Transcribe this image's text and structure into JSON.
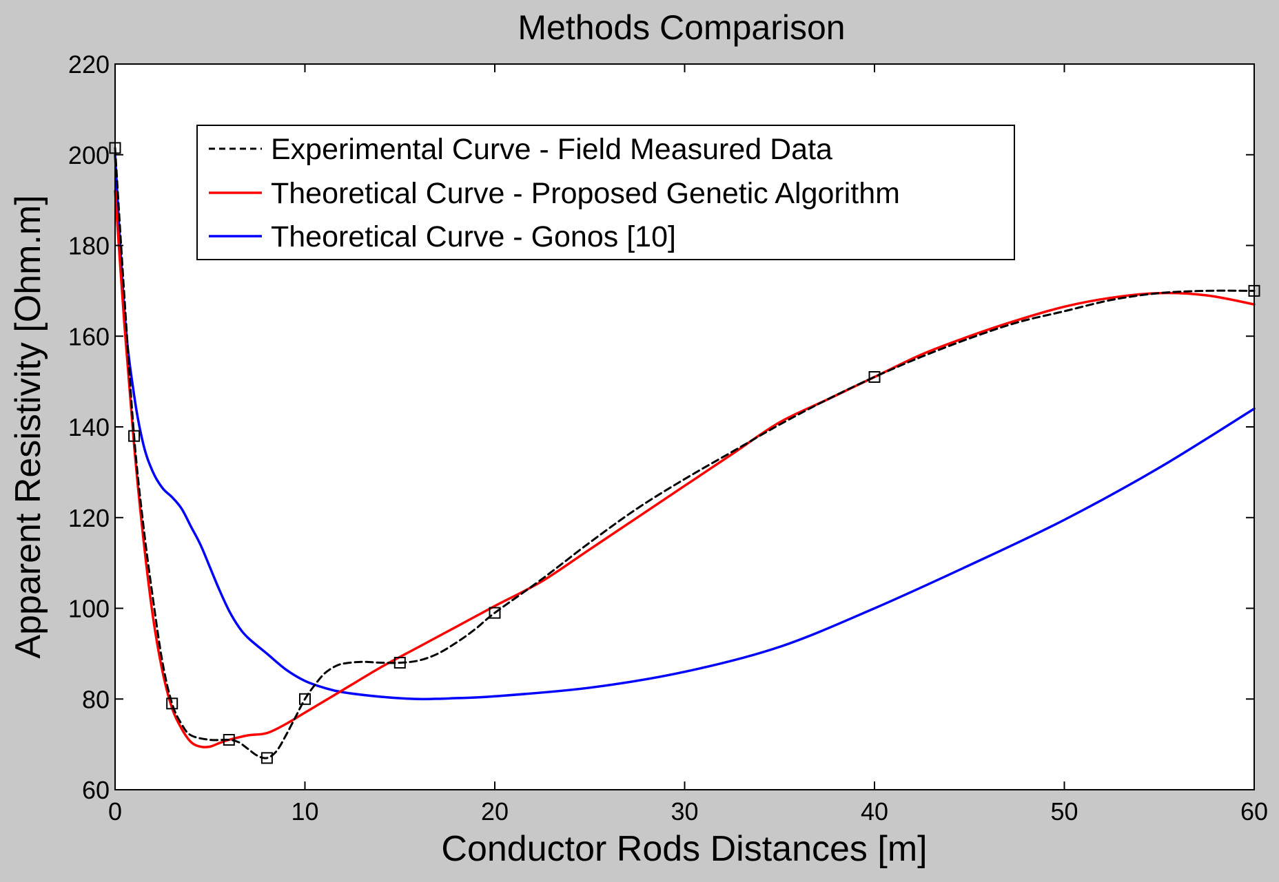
{
  "chart_data": {
    "type": "line",
    "title": "Methods Comparison",
    "xlabel": "Conductor Rods Distances [m]",
    "ylabel": "Apparent Resistivity [Ohm.m]",
    "xlim": [
      0,
      60
    ],
    "ylim": [
      60,
      220
    ],
    "xticks": [
      0,
      10,
      20,
      30,
      40,
      50,
      60
    ],
    "yticks": [
      60,
      80,
      100,
      120,
      140,
      160,
      180,
      200,
      220
    ],
    "grid": false,
    "legend_position": "top-left",
    "series": [
      {
        "name": "Experimental Curve - Field Measured Data",
        "color": "#000000",
        "style": "dashed",
        "markers": "square",
        "points": [
          [
            0,
            201.5
          ],
          [
            1,
            138
          ],
          [
            3,
            79
          ],
          [
            6,
            71
          ],
          [
            8,
            67
          ],
          [
            10,
            80
          ],
          [
            15,
            88
          ],
          [
            20,
            99
          ],
          [
            40,
            151
          ],
          [
            60,
            170
          ]
        ],
        "curve": [
          [
            0,
            201.5
          ],
          [
            0.5,
            168
          ],
          [
            1,
            138
          ],
          [
            1.5,
            118
          ],
          [
            2,
            102
          ],
          [
            2.5,
            88
          ],
          [
            3,
            79
          ],
          [
            3.5,
            74.5
          ],
          [
            4,
            72
          ],
          [
            5,
            71
          ],
          [
            6,
            71
          ],
          [
            6.5,
            70.5
          ],
          [
            7,
            69
          ],
          [
            7.5,
            67.5
          ],
          [
            8,
            67
          ],
          [
            8.5,
            68.5
          ],
          [
            9,
            72
          ],
          [
            9.5,
            76
          ],
          [
            10,
            80
          ],
          [
            10.5,
            83
          ],
          [
            11,
            85.5
          ],
          [
            11.5,
            87
          ],
          [
            12,
            87.8
          ],
          [
            13,
            88.2
          ],
          [
            14,
            88
          ],
          [
            15,
            88
          ],
          [
            16,
            88.5
          ],
          [
            17,
            90
          ],
          [
            18,
            92.5
          ],
          [
            19,
            95.5
          ],
          [
            20,
            99
          ],
          [
            22.5,
            106.5
          ],
          [
            25,
            114.5
          ],
          [
            27.5,
            122
          ],
          [
            30,
            128.5
          ],
          [
            32.5,
            134.5
          ],
          [
            35,
            140.5
          ],
          [
            37.5,
            146
          ],
          [
            40,
            151
          ],
          [
            42.5,
            155.5
          ],
          [
            45,
            159.5
          ],
          [
            47.5,
            163
          ],
          [
            50,
            165.5
          ],
          [
            52.5,
            168
          ],
          [
            55,
            169.5
          ],
          [
            57.5,
            170
          ],
          [
            60,
            170
          ]
        ]
      },
      {
        "name": "Theoretical Curve - Proposed Genetic Algorithm",
        "color": "#ff0000",
        "style": "solid",
        "curve": [
          [
            0,
            192
          ],
          [
            0.5,
            162
          ],
          [
            1,
            136
          ],
          [
            1.5,
            115
          ],
          [
            2,
            98
          ],
          [
            2.5,
            86
          ],
          [
            3,
            78
          ],
          [
            3.5,
            73.5
          ],
          [
            4,
            70.5
          ],
          [
            4.5,
            69.5
          ],
          [
            5,
            69.5
          ],
          [
            5.5,
            70.3
          ],
          [
            6,
            71
          ],
          [
            7,
            72
          ],
          [
            8,
            72.5
          ],
          [
            9,
            74.5
          ],
          [
            10,
            77
          ],
          [
            12,
            82
          ],
          [
            14,
            87
          ],
          [
            16,
            91.5
          ],
          [
            18,
            96
          ],
          [
            20,
            100.5
          ],
          [
            22.5,
            106
          ],
          [
            25,
            113
          ],
          [
            27.5,
            120
          ],
          [
            30,
            127
          ],
          [
            32.5,
            134
          ],
          [
            35,
            141
          ],
          [
            37.5,
            146
          ],
          [
            40,
            151
          ],
          [
            42.5,
            156
          ],
          [
            45,
            160
          ],
          [
            47.5,
            163.5
          ],
          [
            50,
            166.5
          ],
          [
            52.5,
            168.5
          ],
          [
            55,
            169.5
          ],
          [
            57.5,
            169
          ],
          [
            60,
            167
          ]
        ]
      },
      {
        "name": "Theoretical Curve - Gonos [10]",
        "color": "#0000ff",
        "style": "solid",
        "curve": [
          [
            0,
            200
          ],
          [
            0.5,
            165
          ],
          [
            1,
            147
          ],
          [
            1.5,
            136
          ],
          [
            2,
            130
          ],
          [
            2.5,
            126.5
          ],
          [
            3,
            124.5
          ],
          [
            3.5,
            122
          ],
          [
            4,
            118
          ],
          [
            4.5,
            114
          ],
          [
            5,
            109
          ],
          [
            5.5,
            104
          ],
          [
            6,
            99.5
          ],
          [
            6.5,
            96
          ],
          [
            7,
            93.5
          ],
          [
            8,
            90
          ],
          [
            9,
            86.5
          ],
          [
            10,
            84
          ],
          [
            11,
            82.5
          ],
          [
            12,
            81.5
          ],
          [
            14,
            80.5
          ],
          [
            16,
            80
          ],
          [
            18,
            80.2
          ],
          [
            20,
            80.6
          ],
          [
            25,
            82.5
          ],
          [
            30,
            86
          ],
          [
            35,
            91.5
          ],
          [
            40,
            100
          ],
          [
            45,
            109.5
          ],
          [
            50,
            119.5
          ],
          [
            55,
            131
          ],
          [
            60,
            144
          ]
        ]
      }
    ]
  }
}
